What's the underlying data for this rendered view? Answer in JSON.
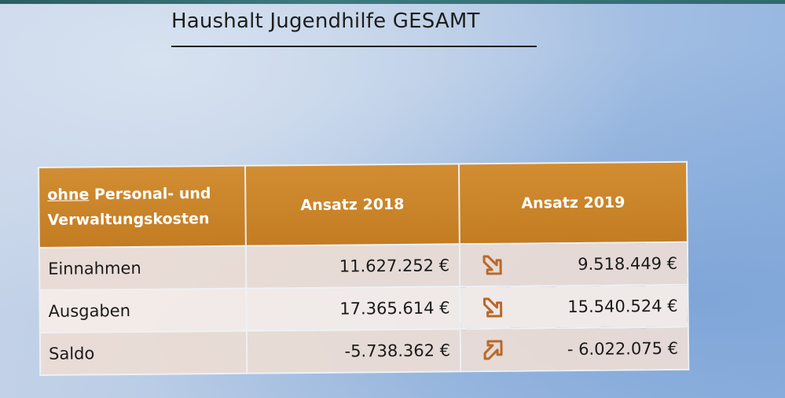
{
  "title": "Haushalt Jugendhilfe GESAMT",
  "table": {
    "header": {
      "label_underlined": "ohne",
      "label_rest_line1": " Personal- und",
      "label_line2": "Verwaltungskosten",
      "col_2018": "Ansatz 2018",
      "col_2019": "Ansatz 2019"
    },
    "rows": [
      {
        "label": "Einnahmen",
        "value_2018": "11.627.252 €",
        "trend_icon": "arrow-down-right-icon",
        "value_2019": "9.518.449 €"
      },
      {
        "label": "Ausgaben",
        "value_2018": "17.365.614 €",
        "trend_icon": "arrow-down-right-icon",
        "value_2019": "15.540.524 €"
      },
      {
        "label": "Saldo",
        "value_2018": "-5.738.362 €",
        "trend_icon": "arrow-up-right-icon",
        "value_2019": "- 6.022.075 €"
      }
    ]
  },
  "colors": {
    "header_orange": "#c8832a",
    "arrow_orange": "#b9682a",
    "row_pink": "#ecdcd4",
    "row_light": "#f4ece8"
  }
}
